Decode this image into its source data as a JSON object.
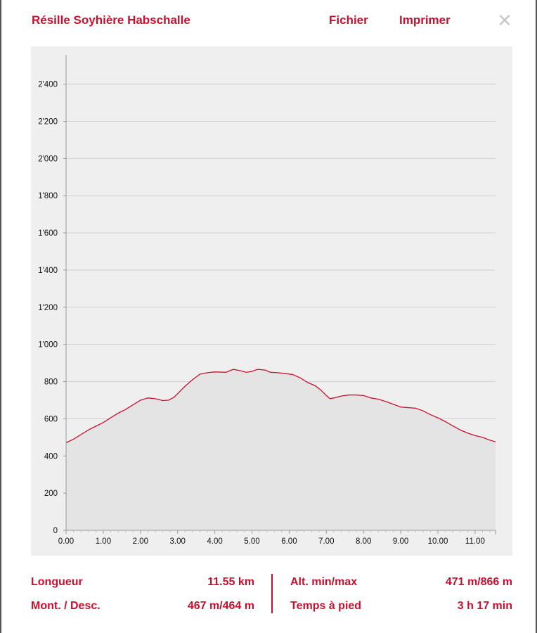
{
  "header": {
    "title": "Résille Soyhière Habschalle",
    "menu": {
      "file_label": "Fichier",
      "print_label": "Imprimer"
    },
    "close_icon": "close-icon",
    "accent_color": "#c8102e"
  },
  "chart_data": {
    "type": "area",
    "xlabel": "",
    "ylabel": "",
    "xlim": [
      0,
      11.55
    ],
    "ylim": [
      0,
      2550
    ],
    "x_ticks": [
      0,
      1,
      2,
      3,
      4,
      5,
      6,
      7,
      8,
      9,
      10,
      11
    ],
    "x_tick_labels": [
      "0.00",
      "1.00",
      "2.00",
      "3.00",
      "4.00",
      "5.00",
      "6.00",
      "7.00",
      "8.00",
      "9.00",
      "10.00",
      "11.00"
    ],
    "y_ticks": [
      0,
      200,
      400,
      600,
      800,
      1000,
      1200,
      1400,
      1600,
      1800,
      2000,
      2200,
      2400
    ],
    "y_tick_labels": [
      "0",
      "200",
      "400",
      "600",
      "800",
      "1'000",
      "1'200",
      "1'400",
      "1'600",
      "1'800",
      "2'000",
      "2'200",
      "2'400"
    ],
    "grid": true,
    "line_color": "#c8102e",
    "fill_color": "#e4e4e4",
    "series": [
      {
        "x": [
          0,
          0.2,
          0.4,
          0.6,
          0.8,
          1.0,
          1.2,
          1.4,
          1.6,
          1.8,
          2.0,
          2.2,
          2.4,
          2.6,
          2.75,
          2.9,
          3.05,
          3.2,
          3.4,
          3.6,
          3.8,
          4.0,
          4.3,
          4.5,
          4.7,
          4.85,
          5.0,
          5.15,
          5.35,
          5.5,
          5.7,
          5.9,
          6.1,
          6.3,
          6.5,
          6.7,
          6.85,
          7.0,
          7.1,
          7.2,
          7.4,
          7.6,
          7.8,
          8.0,
          8.2,
          8.4,
          8.6,
          8.8,
          9.0,
          9.2,
          9.4,
          9.6,
          9.8,
          10.0,
          10.2,
          10.4,
          10.6,
          10.8,
          11.0,
          11.2,
          11.4,
          11.55
        ],
        "y": [
          471,
          490,
          515,
          540,
          560,
          580,
          605,
          630,
          650,
          675,
          700,
          712,
          708,
          698,
          700,
          715,
          745,
          775,
          810,
          840,
          848,
          852,
          850,
          866,
          858,
          850,
          855,
          866,
          862,
          850,
          848,
          843,
          838,
          820,
          795,
          778,
          755,
          725,
          708,
          712,
          722,
          728,
          728,
          725,
          712,
          705,
          693,
          678,
          663,
          660,
          657,
          643,
          622,
          605,
          585,
          562,
          540,
          523,
          510,
          500,
          485,
          476
        ]
      }
    ]
  },
  "stats": {
    "length_label": "Longueur",
    "length_value": "11.55 km",
    "updown_label": "Mont. / Desc.",
    "updown_value": "467 m/464 m",
    "altitude_label": "Alt. min/max",
    "altitude_value": "471 m/866 m",
    "time_label": "Temps à pied",
    "time_value": "3 h 17 min"
  }
}
